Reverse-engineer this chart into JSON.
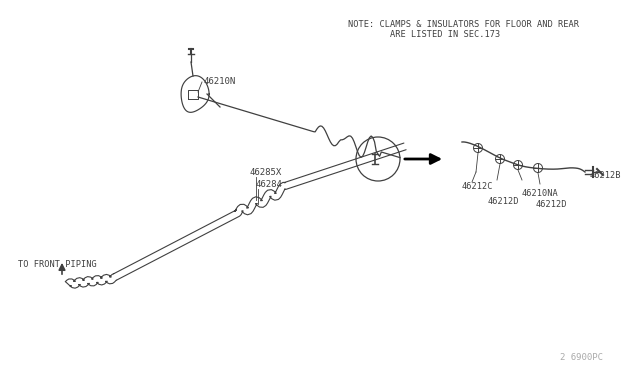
{
  "bg_color": "#ffffff",
  "line_color": "#404040",
  "text_color": "#404040",
  "note_line1": "NOTE: CLAMPS & INSULATORS FOR FLOOR AND REAR",
  "note_line2": "        ARE LISTED IN SEC.173",
  "watermark": "2 6900PC",
  "fig_w": 6.4,
  "fig_h": 3.72,
  "dpi": 100
}
